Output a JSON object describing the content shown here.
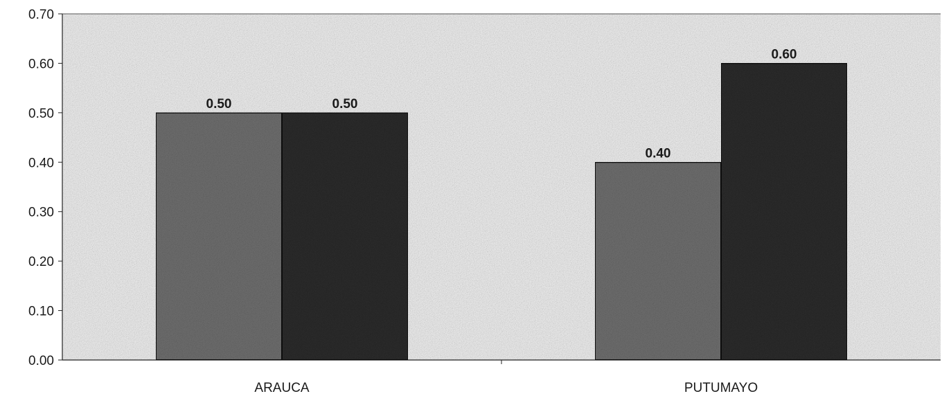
{
  "chart_data": {
    "type": "bar",
    "title": "",
    "xlabel": "",
    "ylabel": "",
    "categories": [
      "ARAUCA",
      "PUTUMAYO"
    ],
    "series": [
      {
        "values": [
          0.5,
          0.4
        ],
        "color": "#6b6b6b"
      },
      {
        "values": [
          0.5,
          0.6
        ],
        "color": "#2a2a2a"
      }
    ],
    "data_labels": [
      [
        "0.50",
        "0.40"
      ],
      [
        "0.50",
        "0.60"
      ]
    ],
    "ylim": [
      0,
      0.7
    ],
    "yticks": [
      "0.00",
      "0.10",
      "0.20",
      "0.30",
      "0.40",
      "0.50",
      "0.60",
      "0.70"
    ],
    "grid": false,
    "legend": "none",
    "plot_background": "#e6e6e6"
  }
}
